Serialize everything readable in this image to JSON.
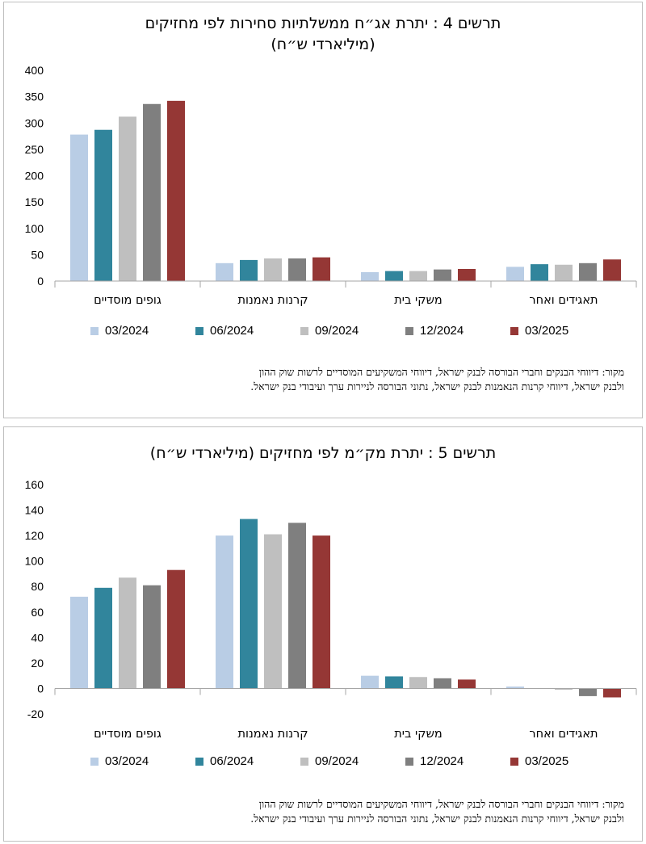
{
  "chart_data": [
    {
      "type": "bar",
      "title_line1": "תרשים 4 : יתרת אג״ח ממשלתיות סחירות לפי מחזיקים",
      "title_line2": "(מיליארדי ש״ח)",
      "categories": [
        "גופים מוסדיים",
        "קרנות נאמנות",
        "משקי בית",
        "תאגידים ואחר"
      ],
      "series": [
        {
          "name": "03/2024",
          "color": "#b9cde5",
          "values": [
            278,
            34,
            17,
            27
          ]
        },
        {
          "name": "06/2024",
          "color": "#31859c",
          "values": [
            287,
            40,
            19,
            32
          ]
        },
        {
          "name": "09/2024",
          "color": "#bfbfbf",
          "values": [
            312,
            43,
            19,
            31
          ]
        },
        {
          "name": "12/2024",
          "color": "#7f7f7f",
          "values": [
            336,
            43,
            22,
            34
          ]
        },
        {
          "name": "03/2025",
          "color": "#953735",
          "values": [
            342,
            45,
            23,
            41
          ]
        }
      ],
      "ylim": [
        0,
        400
      ],
      "yticks": [
        0,
        50,
        100,
        150,
        200,
        250,
        300,
        350,
        400
      ],
      "grid": false,
      "legend": "bottom",
      "source_line1": "מקור: דיווחי הבנקים וחברי הבורסה לבנק ישראל, דיווחי המשקיעים המוסדיים לרשות שוק ההון",
      "source_line2": "ולבנק ישראל, דיווחי קרנות הנאמנות לבנק ישראל, נתוני הבורסה לניירות ערך ועיבודי בנק ישראל."
    },
    {
      "type": "bar",
      "title_line1": "תרשים 5 : יתרת מק״מ לפי מחזיקים (מיליארדי ש״ח)",
      "title_line2": "",
      "categories": [
        "גופים מוסדיים",
        "קרנות נאמנות",
        "משקי בית",
        "תאגידים ואחר"
      ],
      "series": [
        {
          "name": "03/2024",
          "color": "#b9cde5",
          "values": [
            72,
            120,
            10,
            1.5
          ]
        },
        {
          "name": "06/2024",
          "color": "#31859c",
          "values": [
            79,
            133,
            9.5,
            -0.3
          ]
        },
        {
          "name": "09/2024",
          "color": "#bfbfbf",
          "values": [
            87,
            121,
            9,
            -1
          ]
        },
        {
          "name": "12/2024",
          "color": "#7f7f7f",
          "values": [
            81,
            130,
            8,
            -6
          ]
        },
        {
          "name": "03/2025",
          "color": "#953735",
          "values": [
            93,
            120,
            7,
            -7
          ]
        }
      ],
      "ylim": [
        -20,
        160
      ],
      "yticks": [
        -20,
        0,
        20,
        40,
        60,
        80,
        100,
        120,
        140,
        160
      ],
      "grid": false,
      "legend": "bottom",
      "source_line1": "מקור: דיווחי הבנקים וחברי הבורסה לבנק ישראל, דיווחי המשקיעים המוסדיים לרשות שוק ההון",
      "source_line2": "ולבנק ישראל, דיווחי קרנות הנאמנות לבנק ישראל, נתוני הבורסה לניירות ערך ועיבודי בנק ישראל."
    }
  ]
}
